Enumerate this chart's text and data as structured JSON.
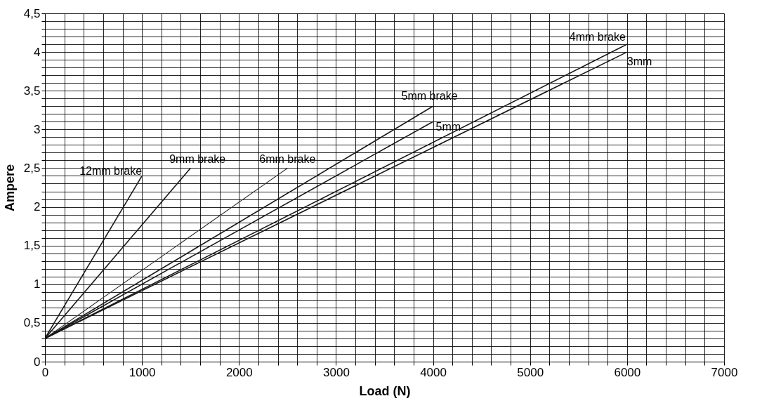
{
  "chart_data": {
    "type": "line",
    "xlabel": "Load (N)",
    "ylabel": "Ampere",
    "xlim": [
      0,
      7000
    ],
    "ylim": [
      0,
      4.5
    ],
    "xticks": [
      0,
      {
        "value": 200,
        "label": null
      },
      {
        "value": 400,
        "label": null
      },
      {
        "value": 600,
        "label": null
      },
      {
        "value": 800,
        "label": null
      },
      1000,
      {
        "value": 1200,
        "label": null
      },
      {
        "value": 1400,
        "label": null
      },
      {
        "value": 1600,
        "label": null
      },
      {
        "value": 1800,
        "label": null
      },
      2000,
      {
        "value": 2200,
        "label": null
      },
      {
        "value": 2400,
        "label": null
      },
      {
        "value": 2600,
        "label": null
      },
      {
        "value": 2800,
        "label": null
      },
      3000,
      {
        "value": 3200,
        "label": null
      },
      {
        "value": 3400,
        "label": null
      },
      {
        "value": 3600,
        "label": null
      },
      {
        "value": 3800,
        "label": null
      },
      4000,
      {
        "value": 4200,
        "label": null
      },
      {
        "value": 4400,
        "label": null
      },
      {
        "value": 4600,
        "label": null
      },
      {
        "value": 4800,
        "label": null
      },
      5000,
      {
        "value": 5200,
        "label": null
      },
      {
        "value": 5400,
        "label": null
      },
      {
        "value": 5600,
        "label": null
      },
      {
        "value": 5800,
        "label": null
      },
      6000,
      {
        "value": 6200,
        "label": null
      },
      {
        "value": 6400,
        "label": null
      },
      {
        "value": 6600,
        "label": null
      },
      {
        "value": 6800,
        "label": null
      },
      7000
    ],
    "yticks": [
      0,
      {
        "value": 0.1,
        "label": null
      },
      {
        "value": 0.2,
        "label": null
      },
      {
        "value": 0.3,
        "label": null
      },
      {
        "value": 0.4,
        "label": null
      },
      {
        "value": 0.5,
        "label": "0,5"
      },
      {
        "value": 0.6,
        "label": null
      },
      {
        "value": 0.7,
        "label": null
      },
      {
        "value": 0.8,
        "label": null
      },
      {
        "value": 0.9,
        "label": null
      },
      1,
      {
        "value": 1.1,
        "label": null
      },
      {
        "value": 1.2,
        "label": null
      },
      {
        "value": 1.3,
        "label": null
      },
      {
        "value": 1.4,
        "label": null
      },
      {
        "value": 1.5,
        "label": "1,5"
      },
      {
        "value": 1.6,
        "label": null
      },
      {
        "value": 1.7,
        "label": null
      },
      {
        "value": 1.8,
        "label": null
      },
      {
        "value": 1.9,
        "label": null
      },
      2,
      {
        "value": 2.1,
        "label": null
      },
      {
        "value": 2.2,
        "label": null
      },
      {
        "value": 2.3,
        "label": null
      },
      {
        "value": 2.4,
        "label": null
      },
      {
        "value": 2.5,
        "label": "2,5"
      },
      {
        "value": 2.6,
        "label": null
      },
      {
        "value": 2.7,
        "label": null
      },
      {
        "value": 2.8,
        "label": null
      },
      {
        "value": 2.9,
        "label": null
      },
      3,
      {
        "value": 3.1,
        "label": null
      },
      {
        "value": 3.2,
        "label": null
      },
      {
        "value": 3.3,
        "label": null
      },
      {
        "value": 3.4,
        "label": null
      },
      {
        "value": 3.5,
        "label": "3,5"
      },
      {
        "value": 3.6,
        "label": null
      },
      {
        "value": 3.7,
        "label": null
      },
      {
        "value": 3.8,
        "label": null
      },
      {
        "value": 3.9,
        "label": null
      },
      4,
      {
        "value": 4.1,
        "label": null
      },
      {
        "value": 4.2,
        "label": null
      },
      {
        "value": 4.3,
        "label": null
      },
      {
        "value": 4.4,
        "label": null
      },
      {
        "value": 4.5,
        "label": "4,5"
      }
    ],
    "grid": true,
    "marker": "none",
    "line_style": "solid",
    "series": [
      {
        "name": "12mm brake",
        "color": "#1a1a1a",
        "x": [
          0,
          1000
        ],
        "values": [
          0.3,
          2.4
        ]
      },
      {
        "name": "9mm brake",
        "color": "#1a1a1a",
        "x": [
          0,
          1500
        ],
        "values": [
          0.3,
          2.5
        ]
      },
      {
        "name": "6mm brake",
        "color": "#333333",
        "x": [
          0,
          2500
        ],
        "values": [
          0.3,
          2.5
        ]
      },
      {
        "name": "5mm brake",
        "color": "#1a1a1a",
        "x": [
          0,
          4000
        ],
        "values": [
          0.3,
          3.3
        ]
      },
      {
        "name": "5mm",
        "color": "#1a1a1a",
        "x": [
          0,
          4000
        ],
        "values": [
          0.3,
          3.1
        ]
      },
      {
        "name": "4mm brake",
        "color": "#1a1a1a",
        "x": [
          0,
          6000
        ],
        "values": [
          0.3,
          4.1
        ]
      },
      {
        "name": "3mm",
        "color": "#1a1a1a",
        "x": [
          0,
          6000
        ],
        "values": [
          0.3,
          4.0
        ]
      }
    ]
  }
}
